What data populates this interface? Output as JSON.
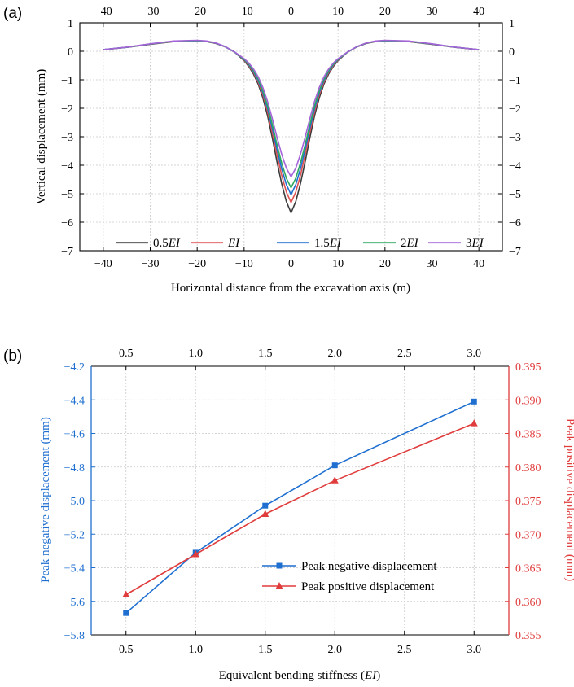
{
  "chart_data": [
    {
      "panel_label": "(a)",
      "type": "line",
      "xlabel": "Horizontal distance from the excavation axis (m)",
      "ylabel": "Vertical displacement (mm)",
      "xlim": [
        -45,
        45
      ],
      "ylim": [
        -7,
        1
      ],
      "xticks": [
        -40,
        -30,
        -20,
        -10,
        0,
        10,
        20,
        30,
        40
      ],
      "yticks": [
        1,
        0,
        -1,
        -2,
        -3,
        -4,
        -5,
        -6,
        -7
      ],
      "tick_labels_x": [
        "−40",
        "−30",
        "−20",
        "−10",
        "0",
        "10",
        "20",
        "30",
        "40"
      ],
      "tick_labels_y": [
        "1",
        "0",
        "−1",
        "−2",
        "−3",
        "−4",
        "−5",
        "−6",
        "−7"
      ],
      "x": [
        -40,
        -35,
        -30,
        -25,
        -20,
        -18,
        -16,
        -14,
        -12,
        -10,
        -9,
        -8,
        -7,
        -6,
        -5,
        -4,
        -3,
        -2,
        -1,
        0,
        1,
        2,
        3,
        4,
        5,
        6,
        7,
        8,
        9,
        10,
        12,
        14,
        16,
        18,
        20,
        25,
        30,
        35,
        40
      ],
      "shape": [
        -0.01,
        -0.025,
        -0.045,
        -0.062,
        -0.066,
        -0.062,
        -0.05,
        -0.028,
        0.006,
        0.058,
        0.094,
        0.141,
        0.203,
        0.289,
        0.4,
        0.535,
        0.684,
        0.82,
        0.93,
        1.0,
        0.93,
        0.82,
        0.684,
        0.535,
        0.4,
        0.289,
        0.203,
        0.141,
        0.094,
        0.058,
        0.006,
        -0.028,
        -0.05,
        -0.062,
        -0.066,
        -0.062,
        -0.045,
        -0.025,
        -0.01
      ],
      "series": [
        {
          "name_prefix": "0.5",
          "name_em": "EI",
          "color": "#3c3c3c",
          "peak_negative": -5.67,
          "peak_positive": 0.361
        },
        {
          "name_prefix": "",
          "name_em": "EI",
          "color": "#e05252",
          "peak_negative": -5.31,
          "peak_positive": 0.367
        },
        {
          "name_prefix": "1.5",
          "name_em": "EI",
          "color": "#1f6fd0",
          "peak_negative": -5.03,
          "peak_positive": 0.373
        },
        {
          "name_prefix": "2",
          "name_em": "EI",
          "color": "#2ea85f",
          "peak_negative": -4.79,
          "peak_positive": 0.378
        },
        {
          "name_prefix": "3",
          "name_em": "EI",
          "color": "#a463d8",
          "peak_negative": -4.41,
          "peak_positive": 0.386
        }
      ],
      "legend_position": "bottom-center"
    },
    {
      "panel_label": "(b)",
      "type": "line",
      "xlabel_prefix": "Equivalent bending stiffness (",
      "xlabel_em": "EI",
      "xlabel_suffix": ")",
      "ylabel_left": "Peak negative displacement (mm)",
      "ylabel_right": "Peak positive displacement (mm)",
      "xlim": [
        0.25,
        3.25
      ],
      "ylim_left": [
        -5.8,
        -4.2
      ],
      "ylim_right": [
        0.355,
        0.395
      ],
      "xticks": [
        0.5,
        1.0,
        1.5,
        2.0,
        2.5,
        3.0
      ],
      "tick_labels_x": [
        "0.5",
        "1.0",
        "1.5",
        "2.0",
        "2.5",
        "3.0"
      ],
      "yticks_left": [
        -4.2,
        -4.4,
        -4.6,
        -4.8,
        -5.0,
        -5.2,
        -5.4,
        -5.6,
        -5.8
      ],
      "tick_labels_left": [
        "−4.2",
        "−4.4",
        "−4.6",
        "−4.8",
        "−5.0",
        "−5.2",
        "−5.4",
        "−5.6",
        "−5.8"
      ],
      "yticks_right": [
        0.395,
        0.39,
        0.385,
        0.38,
        0.375,
        0.37,
        0.365,
        0.36,
        0.355
      ],
      "tick_labels_right": [
        "0.395",
        "0.390",
        "0.385",
        "0.380",
        "0.375",
        "0.370",
        "0.365",
        "0.360",
        "0.355"
      ],
      "series": [
        {
          "name": "Peak negative displacement",
          "axis": "left",
          "marker": "square",
          "color": "#1f6fd0",
          "x": [
            0.5,
            1.0,
            1.5,
            2.0,
            3.0
          ],
          "values": [
            -5.67,
            -5.31,
            -5.03,
            -4.79,
            -4.41
          ]
        },
        {
          "name": "Peak positive displacement",
          "axis": "right",
          "marker": "triangle",
          "color": "#e03c3c",
          "x": [
            0.5,
            1.0,
            1.5,
            2.0,
            3.0
          ],
          "values": [
            0.361,
            0.367,
            0.373,
            0.378,
            0.3865
          ]
        }
      ],
      "legend_position": "center-right"
    }
  ]
}
